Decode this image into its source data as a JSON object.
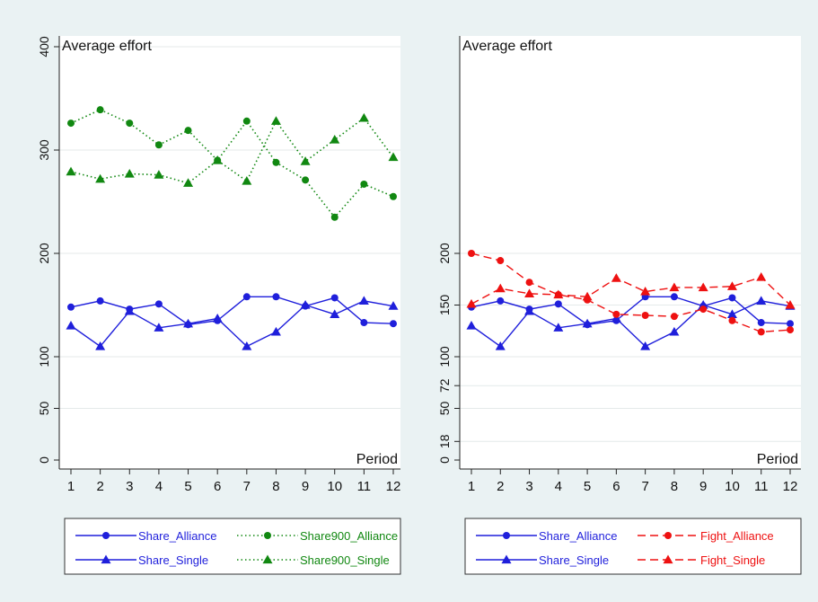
{
  "chart_data": [
    {
      "type": "line",
      "title": "",
      "ylabel": "Average effort",
      "xlabel": "Period",
      "x": [
        1,
        2,
        3,
        4,
        5,
        6,
        7,
        8,
        9,
        10,
        11,
        12
      ],
      "ylim": [
        0,
        400
      ],
      "yticks": [
        "0",
        "50",
        "100",
        "200",
        "300",
        "400"
      ],
      "ytick_values": [
        0,
        50,
        100,
        200,
        300,
        400
      ],
      "grid": true,
      "legend_position": "bottom",
      "series": [
        {
          "name": "Share_Alliance",
          "values": [
            148,
            154,
            146,
            151,
            131,
            135,
            158,
            158,
            149,
            157,
            133,
            132
          ],
          "color": "#1f1fdb",
          "marker": "circle",
          "dash": "solid"
        },
        {
          "name": "Share_Single",
          "values": [
            130,
            110,
            144,
            128,
            132,
            137,
            110,
            124,
            150,
            141,
            154,
            149
          ],
          "color": "#1f1fdb",
          "marker": "triangle",
          "dash": "solid"
        },
        {
          "name": "Share900_Alliance",
          "values": [
            326,
            339,
            326,
            305,
            319,
            290,
            328,
            288,
            271,
            235,
            267,
            255
          ],
          "color": "#118811",
          "marker": "circle",
          "dash": "dotted"
        },
        {
          "name": "Share900_Single",
          "values": [
            279,
            272,
            277,
            276,
            268,
            290,
            270,
            328,
            289,
            310,
            331,
            293
          ],
          "color": "#118811",
          "marker": "triangle",
          "dash": "dotted"
        }
      ]
    },
    {
      "type": "line",
      "title": "",
      "ylabel": "Average effort",
      "xlabel": "Period",
      "x": [
        1,
        2,
        3,
        4,
        5,
        6,
        7,
        8,
        9,
        10,
        11,
        12
      ],
      "ylim": [
        0,
        400
      ],
      "yticks": [
        "0",
        "18",
        "50",
        "72",
        "100",
        "150",
        "200"
      ],
      "ytick_values": [
        0,
        18,
        50,
        72,
        100,
        150,
        200
      ],
      "grid": true,
      "legend_position": "bottom",
      "series": [
        {
          "name": "Share_Alliance",
          "values": [
            148,
            154,
            146,
            151,
            131,
            135,
            158,
            158,
            149,
            157,
            133,
            132
          ],
          "color": "#1f1fdb",
          "marker": "circle",
          "dash": "solid"
        },
        {
          "name": "Share_Single",
          "values": [
            130,
            110,
            144,
            128,
            132,
            137,
            110,
            124,
            150,
            141,
            154,
            149
          ],
          "color": "#1f1fdb",
          "marker": "triangle",
          "dash": "solid"
        },
        {
          "name": "Fight_Alliance",
          "values": [
            200,
            193,
            172,
            160,
            155,
            141,
            140,
            139,
            146,
            135,
            124,
            126
          ],
          "color": "#ee1111",
          "marker": "circle",
          "dash": "dashed"
        },
        {
          "name": "Fight_Single",
          "values": [
            151,
            166,
            161,
            160,
            158,
            176,
            163,
            167,
            167,
            168,
            177,
            150
          ],
          "color": "#ee1111",
          "marker": "triangle",
          "dash": "dashed"
        }
      ]
    }
  ]
}
